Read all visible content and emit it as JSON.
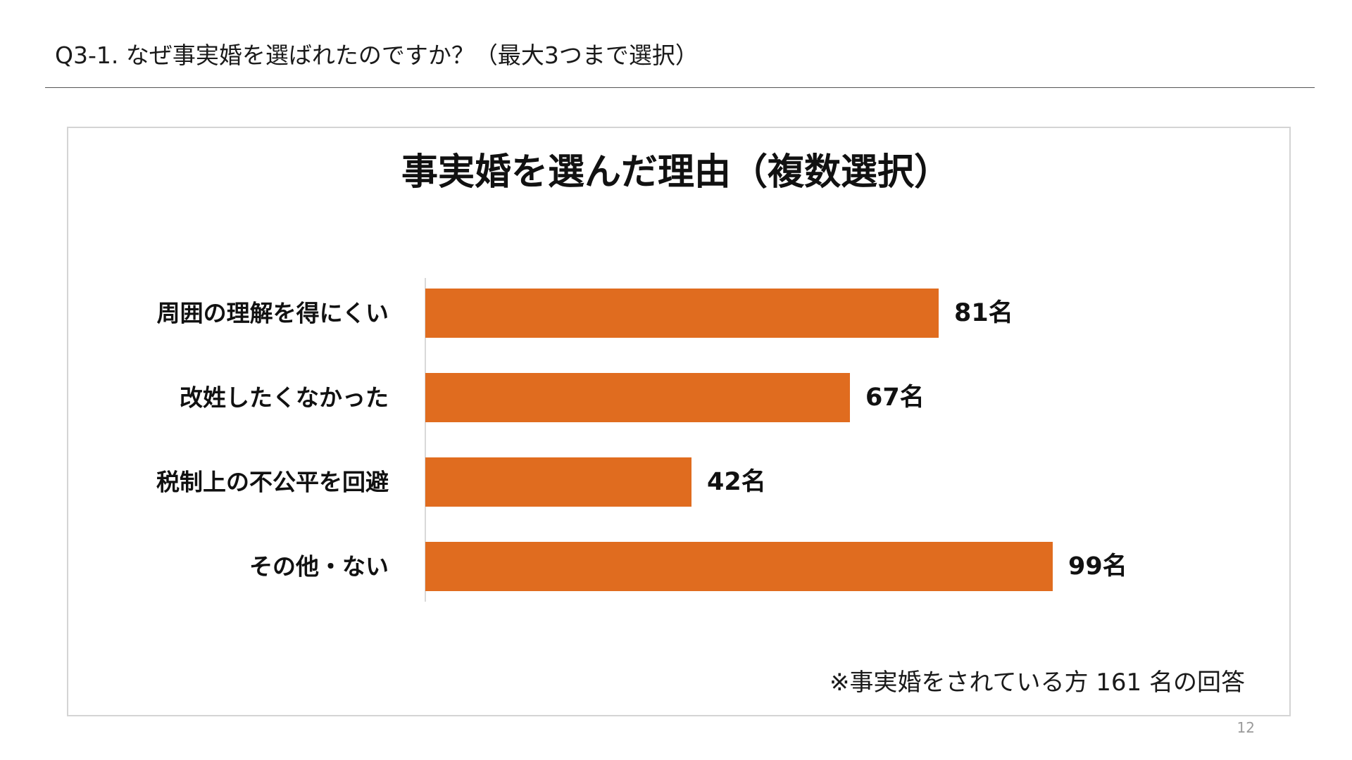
{
  "question": "Q3-1. なぜ事実婚を選ばれたのですか？（最大3つまで選択）",
  "note": "※事実婚をされている方 161 名の回答",
  "page_number": "12",
  "colors": {
    "bar": "#E06C1F",
    "axis": "#d9d9d9"
  },
  "chart_data": {
    "type": "bar",
    "orientation": "horizontal",
    "title": "事実婚を選んだ理由（複数選択）",
    "categories": [
      "周囲の理解を得にくい",
      "改姓したくなかった",
      "税制上の不公平を回避",
      "その他・ない"
    ],
    "values": [
      81,
      67,
      42,
      99
    ],
    "data_labels": [
      "81名",
      "67名",
      "42名",
      "99名"
    ],
    "unit": "名",
    "xlim": [
      0,
      100
    ],
    "grid": false,
    "legend": "none"
  }
}
